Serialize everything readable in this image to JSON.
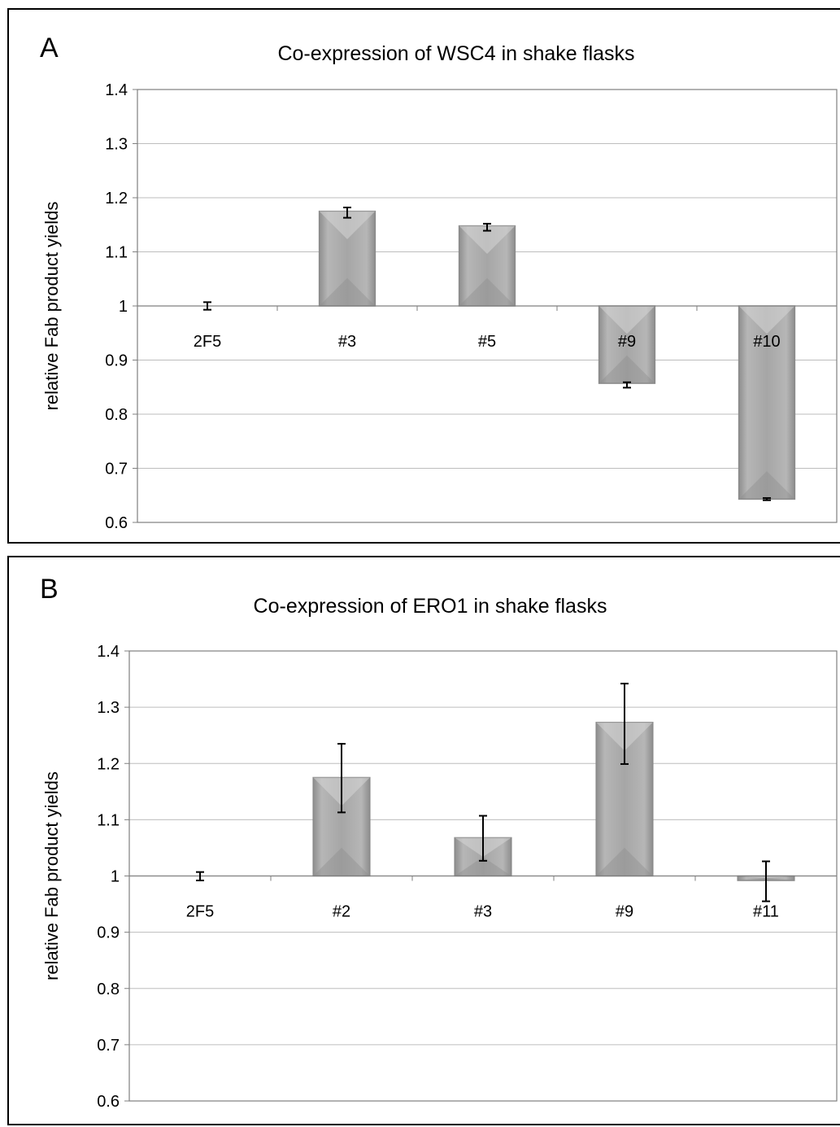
{
  "chart_data": [
    {
      "type": "bar",
      "panel_label": "A",
      "title": "Co-expression of WSC4 in shake flasks",
      "ylabel": "relative Fab product yields",
      "xlabel": "",
      "baseline": 1,
      "ylim": [
        0.6,
        1.4
      ],
      "yticks": [
        0.6,
        0.7,
        0.8,
        0.9,
        1,
        1.1,
        1.2,
        1.3,
        1.4
      ],
      "grid": true,
      "categories": [
        "2F5",
        "#3",
        "#5",
        "#9",
        "#10"
      ],
      "values": [
        1.0,
        1.175,
        1.148,
        0.857,
        0.643
      ],
      "error_low": [
        0.993,
        1.163,
        1.139,
        0.849,
        0.641
      ],
      "error_high": [
        1.007,
        1.182,
        1.152,
        0.859,
        0.645
      ],
      "bar_color": "#a6a6a6"
    },
    {
      "type": "bar",
      "panel_label": "B",
      "title": "Co-expression of ERO1 in shake flasks",
      "ylabel": "relative Fab product yields",
      "xlabel": "",
      "baseline": 1,
      "ylim": [
        0.6,
        1.4
      ],
      "yticks": [
        0.6,
        0.7,
        0.8,
        0.9,
        1,
        1.1,
        1.2,
        1.3,
        1.4
      ],
      "grid": true,
      "categories": [
        "2F5",
        "#2",
        "#3",
        "#9",
        "#11"
      ],
      "values": [
        1.0,
        1.175,
        1.068,
        1.273,
        0.992
      ],
      "error_low": [
        0.992,
        1.113,
        1.027,
        1.199,
        0.955
      ],
      "error_high": [
        1.007,
        1.235,
        1.107,
        1.342,
        1.026
      ],
      "bar_color": "#a6a6a6"
    }
  ]
}
